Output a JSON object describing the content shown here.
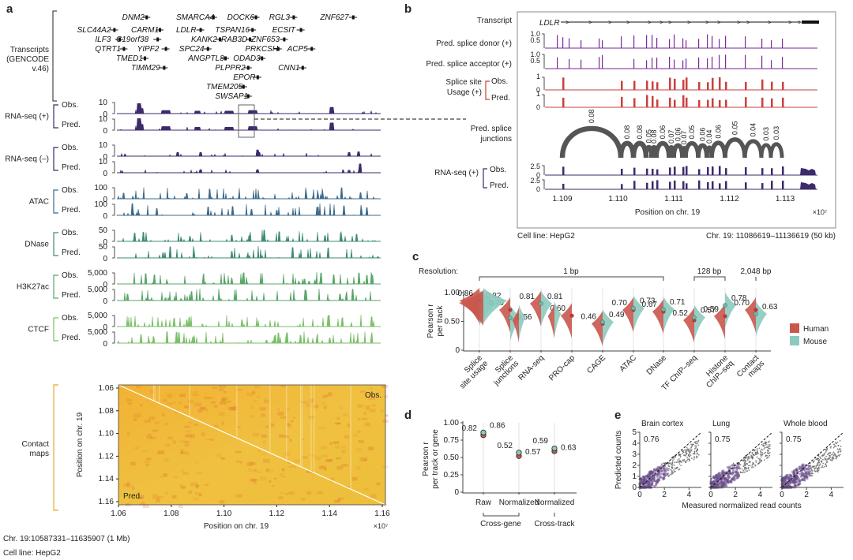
{
  "panels": {
    "a": {
      "label": "a",
      "transcripts_label": [
        "Transcripts",
        "(GENCODE",
        "v.46)"
      ],
      "genes": [
        {
          "name": "DNM2",
          "row": 0,
          "col": 0.17
        },
        {
          "name": "SMARCA4",
          "row": 0,
          "col": 0.35
        },
        {
          "name": "DOCK6",
          "row": 0,
          "col": 0.52
        },
        {
          "name": "RGL3",
          "row": 0,
          "col": 0.66
        },
        {
          "name": "ZNF627",
          "row": 0,
          "col": 0.83
        },
        {
          "name": "SLC44A2",
          "row": 1,
          "col": 0.02
        },
        {
          "name": "CARM1",
          "row": 1,
          "col": 0.2
        },
        {
          "name": "LDLR",
          "row": 1,
          "col": 0.35
        },
        {
          "name": "TSPAN16",
          "row": 1,
          "col": 0.48
        },
        {
          "name": "ECSIT",
          "row": 1,
          "col": 0.67
        },
        {
          "name": "ILF3",
          "row": 2,
          "col": 0.08
        },
        {
          "name": "C19orf38",
          "row": 2,
          "col": 0.15
        },
        {
          "name": "KANK2",
          "row": 2,
          "col": 0.4
        },
        {
          "name": "RAB3D",
          "row": 2,
          "col": 0.5
        },
        {
          "name": "ZNF653",
          "row": 2,
          "col": 0.6
        },
        {
          "name": "QTRT1",
          "row": 3,
          "col": 0.08
        },
        {
          "name": "YIPF2",
          "row": 3,
          "col": 0.22
        },
        {
          "name": "SPC24",
          "row": 3,
          "col": 0.36
        },
        {
          "name": "PRKCSH",
          "row": 3,
          "col": 0.58
        },
        {
          "name": "ACP5",
          "row": 3,
          "col": 0.72
        },
        {
          "name": "TMED1",
          "row": 4,
          "col": 0.15
        },
        {
          "name": "ANGPTL8",
          "row": 4,
          "col": 0.39
        },
        {
          "name": "ODAD3",
          "row": 4,
          "col": 0.54
        },
        {
          "name": "TIMM29",
          "row": 5,
          "col": 0.2
        },
        {
          "name": "PLPPR2",
          "row": 5,
          "col": 0.48
        },
        {
          "name": "CNN1",
          "row": 5,
          "col": 0.69
        },
        {
          "name": "EPOR",
          "row": 6,
          "col": 0.54
        },
        {
          "name": "TMEM205",
          "row": 7,
          "col": 0.45
        },
        {
          "name": "SWSAP1",
          "row": 8,
          "col": 0.48
        }
      ],
      "tracks": [
        {
          "group": "RNA-seq (+)",
          "color": "#3d2a6b",
          "rows": [
            {
              "label": "Obs.",
              "ymax": "10",
              "ymin": "0"
            },
            {
              "label": "Pred.",
              "ymax": "10",
              "ymin": "0"
            }
          ]
        },
        {
          "group": "RNA-seq (–)",
          "color": "#3d2a6b",
          "rows": [
            {
              "label": "Obs.",
              "ymax": "10",
              "ymin": "0"
            },
            {
              "label": "Pred.",
              "ymax": "10",
              "ymin": "0"
            }
          ]
        },
        {
          "group": "ATAC",
          "color": "#3e6a8a",
          "rows": [
            {
              "label": "Obs.",
              "ymax": "100",
              "ymin": "0"
            },
            {
              "label": "Pred.",
              "ymax": "100",
              "ymin": "0"
            }
          ]
        },
        {
          "group": "DNase",
          "color": "#3f8a78",
          "rows": [
            {
              "label": "Obs.",
              "ymax": "50",
              "ymin": "0"
            },
            {
              "label": "Pred.",
              "ymax": "50",
              "ymin": "0"
            }
          ]
        },
        {
          "group": "H3K27ac",
          "color": "#5aa56a",
          "rows": [
            {
              "label": "Obs.",
              "ymax": "5,000",
              "ymin": "0"
            },
            {
              "label": "Pred.",
              "ymax": "5,000",
              "ymin": "0"
            }
          ]
        },
        {
          "group": "CTCF",
          "color": "#7cbf6a",
          "rows": [
            {
              "label": "Obs.",
              "ymax": "5,000",
              "ymin": "0"
            },
            {
              "label": "Pred.",
              "ymax": "5,000",
              "ymin": "0"
            }
          ]
        }
      ],
      "contact": {
        "group": "Contact maps",
        "obs_label": "Obs.",
        "pred_label": "Pred.",
        "y_ticks": [
          "1.06",
          "1.08",
          "1.10",
          "1.12",
          "1.14",
          "1.16"
        ],
        "x_ticks": [
          "1.06",
          "1.08",
          "1.10",
          "1.12",
          "1.14",
          "1.16"
        ],
        "ylabel": "Position on chr. 19",
        "xlabel": "Position on chr. 19",
        "multiplier": "×10⁷",
        "bracket_color": "#e8b84a"
      },
      "footer_region": "Chr. 19:10587331–11635907 (1 Mb)",
      "footer_cell": "Cell line: HepG2"
    },
    "b": {
      "label": "b",
      "transcript_label": "Transcript",
      "gene": "LDLR",
      "rows": [
        {
          "label": "Pred. splice donor (+)",
          "ticks": [
            "1.0",
            "0.5"
          ],
          "color": "#7a2a9a"
        },
        {
          "label": "Pred. splice acceptor (+)",
          "ticks": [
            "1.0",
            "0.5"
          ],
          "color": "#7a2a9a"
        }
      ],
      "splice_usage": {
        "label1": "Splice site",
        "label2": "Usage (+)",
        "obs": "Obs.",
        "pred": "Pred.",
        "ticks": [
          "1",
          "0"
        ],
        "color": "#c9403e"
      },
      "junctions_label": [
        "Pred. splice",
        "junctions"
      ],
      "junctions": [
        "0.08",
        "0.08",
        "0.08",
        "0.05",
        "0.08",
        "0.06",
        "0.07",
        "0.06",
        "0.07",
        "0.05",
        "0.06",
        "0.04",
        "0.06",
        "0.05",
        "0.04",
        "0.03",
        "0.03"
      ],
      "rnaseq": {
        "label": "RNA-seq (+)",
        "obs": "Obs.",
        "pred": "Pred.",
        "ticks": [
          "2.5",
          "0"
        ],
        "color": "#3d2a6b"
      },
      "x_ticks": [
        "1.109",
        "1.110",
        "1.111",
        "1.112",
        "1.113"
      ],
      "xlabel": "Position on chr. 19",
      "multiplier": "×10⁷",
      "footer_cell": "Cell line: HepG2",
      "footer_region": "Chr. 19: 11086619–11136619 (50 kb)"
    }
  },
  "chart_data": [
    {
      "type": "violin",
      "panel": "c",
      "title": "Resolution:",
      "resolution_groups": [
        {
          "label": "1 bp",
          "span": [
            "Splice site usage",
            "DNase"
          ]
        },
        {
          "label": "128 bp",
          "span": [
            "TF ChIP–seq",
            "Histone ChIP–seq"
          ]
        },
        {
          "label": "2,048 bp",
          "span": [
            "Contact maps",
            "Contact maps"
          ]
        }
      ],
      "categories": [
        "Splice site usage",
        "Splice junctions",
        "RNA-seq",
        "PRO-cap",
        "CAGE",
        "ATAC",
        "DNase",
        "TF ChIP–seq",
        "Histone ChIP–seq",
        "Contact maps"
      ],
      "category_lines": [
        [
          "Splice",
          "site usage"
        ],
        [
          "Splice",
          "junctions"
        ],
        [
          "RNA-seq"
        ],
        [
          "PRO-cap"
        ],
        [
          "CAGE"
        ],
        [
          "ATAC"
        ],
        [
          "DNase"
        ],
        [
          "TF ChIP–seq"
        ],
        [
          "Histone",
          "ChIP–seq"
        ],
        [
          "Contact",
          "maps"
        ]
      ],
      "series": [
        {
          "name": "Human",
          "color": "#c9574d",
          "values": [
            0.86,
            0.7,
            0.81,
            0.6,
            0.46,
            0.7,
            0.67,
            0.52,
            0.59,
            0.7
          ]
        },
        {
          "name": "Mouse",
          "color": "#8ccabf",
          "values": [
            0.82,
            0.56,
            0.81,
            null,
            0.49,
            0.73,
            0.71,
            0.57,
            0.78,
            0.63
          ]
        }
      ],
      "ylabel": "Pearson r per track",
      "yticks": [
        "0",
        "0.50",
        "1.00"
      ],
      "ylim": [
        0,
        1.0
      ],
      "legend": "right"
    },
    {
      "type": "violin",
      "panel": "d",
      "categories": [
        "Raw",
        "Normalized",
        "Normalized"
      ],
      "groups": [
        {
          "label": "Cross-gene",
          "span": [
            "Raw",
            "Normalized"
          ]
        },
        {
          "label": "Cross-track",
          "span": [
            "Normalized"
          ]
        }
      ],
      "series": [
        {
          "name": "Human",
          "color": "#c9574d",
          "values": [
            0.82,
            0.52,
            0.59
          ]
        },
        {
          "name": "Mouse",
          "color": "#8ccabf",
          "values": [
            0.86,
            0.57,
            0.63
          ]
        }
      ],
      "ylabel": "Pearson r per track or gene",
      "yticks": [
        "0",
        "0.25",
        "0.50",
        "0.75",
        "1.00"
      ],
      "ylim": [
        0,
        1.0
      ]
    },
    {
      "type": "scatter",
      "panel": "e",
      "subplots": [
        {
          "title": "Brain cortex",
          "r": "0.76"
        },
        {
          "title": "Lung",
          "r": "0.75"
        },
        {
          "title": "Whole blood",
          "r": "0.75"
        }
      ],
      "xlabel": "Measured normalized read counts",
      "ylabel": "Predicted counts",
      "xticks": [
        "0",
        "2",
        "4"
      ],
      "yticks": [
        "0",
        "1",
        "2",
        "3",
        "4",
        "5"
      ],
      "xlim": [
        0,
        5
      ],
      "ylim": [
        0,
        5
      ]
    }
  ],
  "panel_labels": {
    "c": "c",
    "d": "d",
    "e": "e"
  }
}
